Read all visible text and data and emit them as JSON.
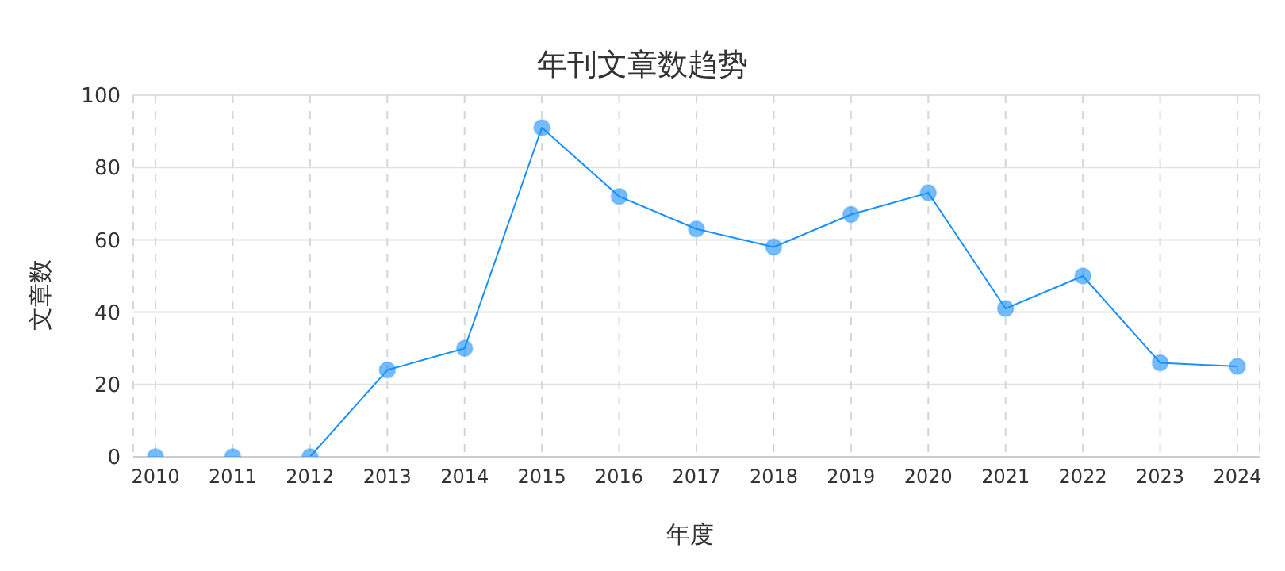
{
  "chart_data": {
    "type": "line",
    "title": "年刊文章数趋势",
    "xlabel": "年度",
    "ylabel": "文章数",
    "categories": [
      "2010",
      "2011",
      "2012",
      "2013",
      "2014",
      "2015",
      "2016",
      "2017",
      "2018",
      "2019",
      "2020",
      "2021",
      "2022",
      "2023",
      "2024"
    ],
    "series": [
      {
        "color": "#1890ff",
        "values": [
          0,
          0,
          0,
          24,
          30,
          91,
          72,
          63,
          58,
          67,
          73,
          41,
          50,
          26,
          25
        ]
      }
    ],
    "ylim": [
      0,
      100
    ],
    "yticks": [
      0,
      20,
      40,
      60,
      80,
      100
    ],
    "grid": true,
    "marker": "circle",
    "line_style": "solid"
  }
}
